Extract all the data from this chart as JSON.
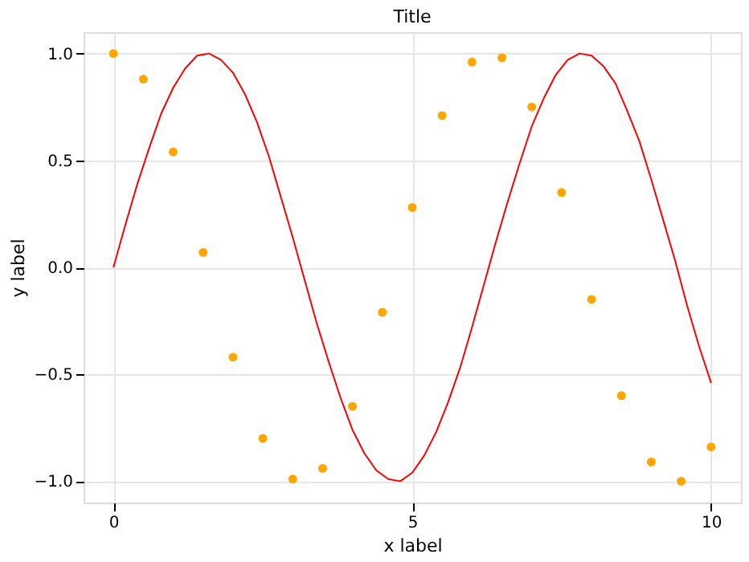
{
  "chart_data": {
    "type": "line",
    "title": "Title",
    "xlabel": "x label",
    "ylabel": "y label",
    "xlim": [
      -0.5,
      10.5
    ],
    "ylim": [
      -1.1,
      1.1
    ],
    "xticks": [
      0,
      5,
      10
    ],
    "yticks": [
      {
        "value": -1,
        "label": "−1.0"
      },
      {
        "value": -0.5,
        "label": "−0.5"
      },
      {
        "value": 0,
        "label": "0.0"
      },
      {
        "value": 0.5,
        "label": "0.5"
      },
      {
        "value": 1,
        "label": "1.0"
      }
    ],
    "grid": true,
    "series": [
      {
        "color": "#ff0000",
        "marker": "none",
        "line_style": "solid",
        "x": [
          0,
          0.2,
          0.4,
          0.6,
          0.8,
          1,
          1.2,
          1.4,
          1.6,
          1.8,
          2,
          2.2,
          2.4,
          2.6,
          2.8,
          3,
          3.2,
          3.4,
          3.6,
          3.8,
          4,
          4.2,
          4.4,
          4.6,
          4.8,
          5,
          5.2,
          5.4,
          5.6,
          5.8,
          6,
          6.2,
          6.4,
          6.6,
          6.8,
          7,
          7.2,
          7.4,
          7.6,
          7.8,
          8,
          8.2,
          8.4,
          8.6,
          8.8,
          9,
          9.2,
          9.4,
          9.6,
          9.8,
          10
        ],
        "values": [
          0,
          0.2,
          0.39,
          0.56,
          0.72,
          0.84,
          0.93,
          0.99,
          1.0,
          0.97,
          0.91,
          0.81,
          0.68,
          0.52,
          0.33,
          0.14,
          -0.06,
          -0.26,
          -0.44,
          -0.61,
          -0.76,
          -0.87,
          -0.95,
          -0.99,
          -1.0,
          -0.96,
          -0.88,
          -0.77,
          -0.63,
          -0.47,
          -0.28,
          -0.08,
          0.12,
          0.31,
          0.49,
          0.66,
          0.79,
          0.9,
          0.97,
          1.0,
          0.99,
          0.94,
          0.86,
          0.73,
          0.59,
          0.41,
          0.22,
          0.03,
          -0.18,
          -0.37,
          -0.54
        ]
      },
      {
        "type": "scatter",
        "color": "#ffa500",
        "marker": "circle",
        "x": [
          0,
          0.5,
          1,
          1.5,
          2,
          2.5,
          3,
          3.5,
          4,
          4.5,
          5,
          5.5,
          6,
          6.5,
          7,
          7.5,
          8,
          8.5,
          9,
          9.5,
          10
        ],
        "values": [
          1.0,
          0.88,
          0.54,
          0.07,
          -0.42,
          -0.8,
          -0.99,
          -0.94,
          -0.65,
          -0.21,
          0.28,
          0.71,
          0.96,
          0.98,
          0.75,
          0.35,
          -0.15,
          -0.6,
          -0.91,
          -1.0,
          -0.84
        ]
      }
    ]
  }
}
